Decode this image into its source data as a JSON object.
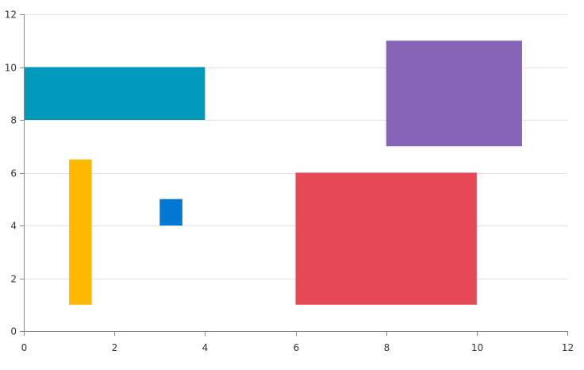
{
  "chart_data": {
    "type": "range-rectangles",
    "title": "",
    "xlabel": "",
    "ylabel": "",
    "xlim": [
      0,
      12
    ],
    "ylim": [
      0,
      12
    ],
    "x_ticks": [
      "0",
      "2",
      "4",
      "6",
      "8",
      "10",
      "12"
    ],
    "y_ticks": [
      "0",
      "2",
      "4",
      "6",
      "8",
      "10",
      "12"
    ],
    "grid": "horizontal",
    "series": [
      {
        "name": "teal",
        "x0": 0,
        "x1": 4,
        "y0": 8,
        "y1": 10,
        "color": "#0099bc"
      },
      {
        "name": "purple",
        "x0": 8,
        "x1": 11,
        "y0": 7,
        "y1": 11,
        "color": "#8764b8"
      },
      {
        "name": "yellow",
        "x0": 1,
        "x1": 1.5,
        "y0": 1,
        "y1": 6.5,
        "color": "#ffb900"
      },
      {
        "name": "blue",
        "x0": 3,
        "x1": 3.5,
        "y0": 4,
        "y1": 5,
        "color": "#0078d4"
      },
      {
        "name": "red",
        "x0": 6,
        "x1": 10,
        "y0": 1,
        "y1": 6,
        "color": "#e74856"
      }
    ]
  }
}
